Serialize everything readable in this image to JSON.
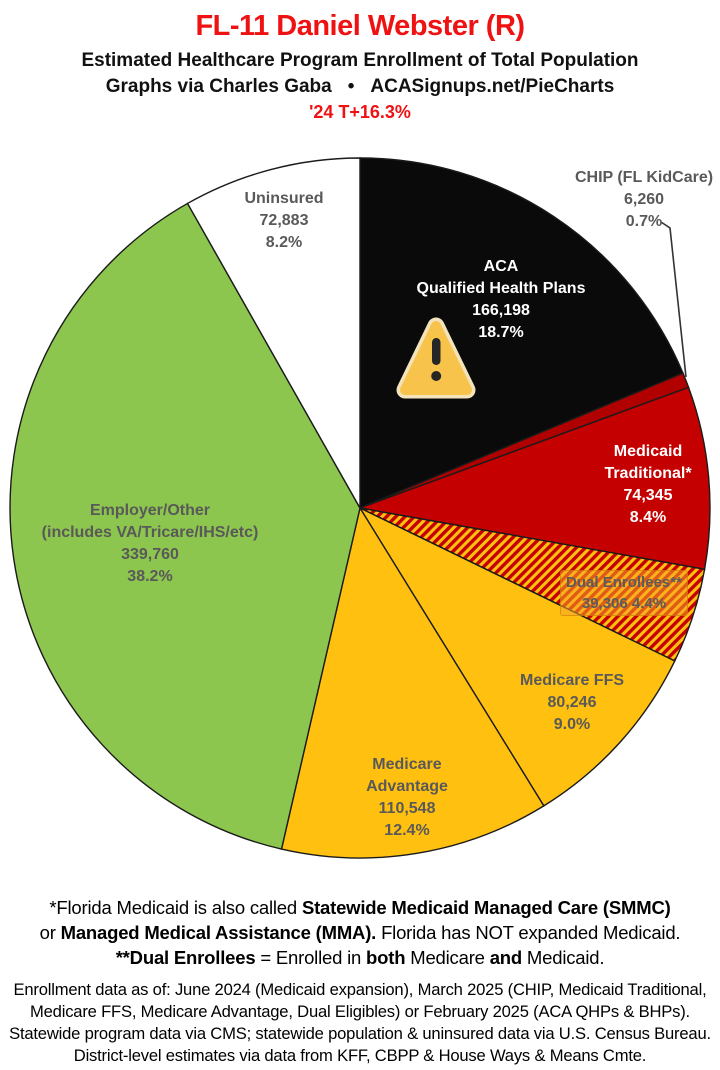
{
  "header": {
    "title": "FL-11 Daniel Webster (R)",
    "subtitle": "Estimated Healthcare Program Enrollment of Total Population",
    "credit_left": "Graphs via Charles Gaba",
    "credit_bullet": "•",
    "credit_right": "ACASignups.net/PieCharts",
    "trend": "'24 T+16.3%"
  },
  "colors": {
    "title_red": "#ef1212",
    "label_gray": "#595959",
    "hatch_gold": "#ffc010",
    "hatch_red": "#c40000",
    "slice_outline": "#1b1b1b",
    "warning_fill": "#f8c34a",
    "warning_rim": "#f2e3bb"
  },
  "chart_data": {
    "type": "pie",
    "title": "Estimated Healthcare Program Enrollment of Total Population",
    "start_angle_deg": 0,
    "direction": "clockwise",
    "legend_position": "labels-on-slices",
    "slices": [
      {
        "name": "ACA Qualified Health Plans",
        "value": 166198,
        "value_label": "166,198",
        "pct": 18.7,
        "pct_label": "18.7%",
        "color": "#0a0a0a",
        "label_lines": [
          "ACA",
          "Qualified Health Plans",
          "166,198",
          "18.7%"
        ]
      },
      {
        "name": "CHIP (FL KidCare)",
        "value": 6260,
        "value_label": "6,260",
        "pct": 0.7,
        "pct_label": "0.7%",
        "color": "#b00000",
        "label_lines": [
          "CHIP (FL KidCare)",
          "6,260",
          "0.7%"
        ]
      },
      {
        "name": "Medicaid Traditional*",
        "value": 74345,
        "value_label": "74,345",
        "pct": 8.4,
        "pct_label": "8.4%",
        "color": "#c40000",
        "label_lines": [
          "Medicaid",
          "Traditional*",
          "74,345",
          "8.4%"
        ]
      },
      {
        "name": "Dual Enrollees**",
        "value": 39306,
        "value_label": "39,306",
        "pct": 4.4,
        "pct_label": "4.4%",
        "color": "hatch",
        "label_lines": [
          "Dual Enrollees**",
          "39,306 4.4%"
        ]
      },
      {
        "name": "Medicare FFS",
        "value": 80246,
        "value_label": "80,246",
        "pct": 9.0,
        "pct_label": "9.0%",
        "color": "#ffc010",
        "label_lines": [
          "Medicare FFS",
          "80,246",
          "9.0%"
        ]
      },
      {
        "name": "Medicare Advantage",
        "value": 110548,
        "value_label": "110,548",
        "pct": 12.4,
        "pct_label": "12.4%",
        "color": "#ffc010",
        "label_lines": [
          "Medicare",
          "Advantage",
          "110,548",
          "12.4%"
        ]
      },
      {
        "name": "Employer/Other (includes VA/Tricare/IHS/etc)",
        "value": 339760,
        "value_label": "339,760",
        "pct": 38.2,
        "pct_label": "38.2%",
        "color": "#8dc64e",
        "label_lines": [
          "Employer/Other",
          "(includes VA/Tricare/IHS/etc)",
          "339,760",
          "38.2%"
        ]
      },
      {
        "name": "Uninsured",
        "value": 72883,
        "value_label": "72,883",
        "pct": 8.2,
        "pct_label": "8.2%",
        "color": "#ffffff",
        "label_lines": [
          "Uninsured",
          "72,883",
          "8.2%"
        ]
      }
    ]
  },
  "footnotes": {
    "medicaid_note": [
      [
        {
          "t": "*Florida Medicaid is also called ",
          "b": false
        },
        {
          "t": "Statewide Medicaid Managed Care (SMMC)",
          "b": true
        }
      ],
      [
        {
          "t": "or ",
          "b": false
        },
        {
          "t": "Managed Medical Assistance (MMA).",
          "b": true
        },
        {
          "t": " Florida has NOT expanded Medicaid.",
          "b": false
        }
      ],
      [
        {
          "t": "**Dual Enrollees",
          "b": true
        },
        {
          "t": " = Enrolled in ",
          "b": false
        },
        {
          "t": "both",
          "b": true
        },
        {
          "t": " Medicare ",
          "b": false
        },
        {
          "t": "and",
          "b": true
        },
        {
          "t": " Medicaid.",
          "b": false
        }
      ]
    ],
    "source_note": [
      "Enrollment data as of: June 2024 (Medicaid expansion), March 2025 (CHIP, Medicaid Traditional,",
      "Medicare FFS, Medicare Advantage, Dual Eligibles) or February 2025 (ACA QHPs & BHPs).",
      "Statewide program data via CMS; statewide population & uninsured data via U.S. Census Bureau.",
      "District-level estimates via data from KFF, CBPP & House Ways & Means Cmte."
    ]
  }
}
